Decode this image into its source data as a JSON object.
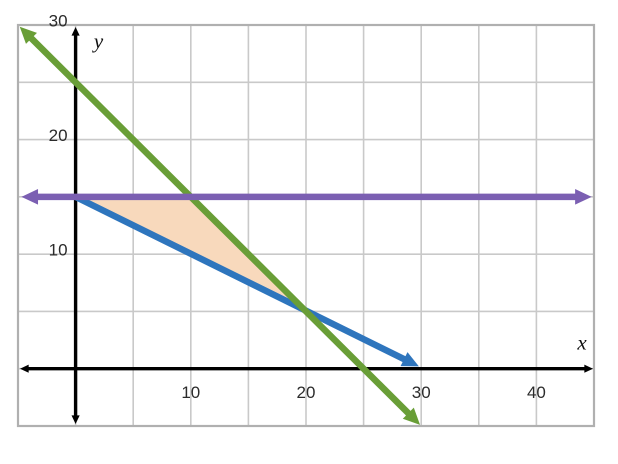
{
  "chart_data": {
    "type": "line",
    "title": "",
    "xlabel": "x",
    "ylabel": "y",
    "xlim": [
      -5,
      45
    ],
    "ylim": [
      -5,
      30
    ],
    "grid": true,
    "grid_step": 5,
    "x_ticks": [
      10,
      20,
      30,
      40
    ],
    "y_ticks": [
      10,
      20,
      30
    ],
    "series": [
      {
        "name": "blue-line",
        "equation": "y = -0.5x + 15",
        "color": "#2e75bd",
        "points": [
          [
            0,
            15
          ],
          [
            29.8,
            0.2
          ]
        ],
        "arrow_start": false,
        "arrow_end": true
      },
      {
        "name": "green-line",
        "equation": "y = -x + 25",
        "color": "#699e37",
        "points": [
          [
            -4.85,
            29.85
          ],
          [
            29.9,
            -4.9
          ]
        ],
        "arrow_start": true,
        "arrow_end": true
      },
      {
        "name": "purple-line",
        "equation": "y = 15",
        "color": "#7b5fb2",
        "points": [
          [
            -4.7,
            15
          ],
          [
            44.8,
            15
          ]
        ],
        "arrow_start": true,
        "arrow_end": true
      }
    ],
    "shaded_region": {
      "name": "solution-region",
      "color": "#f8d9bc",
      "vertices": [
        [
          0,
          15
        ],
        [
          10,
          15
        ],
        [
          20,
          5
        ]
      ]
    },
    "colors": {
      "axis": "#000000",
      "grid": "#c9c9c9",
      "grid_border": "#b0b0b0",
      "tick_text": "#2b2b2b",
      "background": "#ffffff"
    },
    "legend": null
  }
}
